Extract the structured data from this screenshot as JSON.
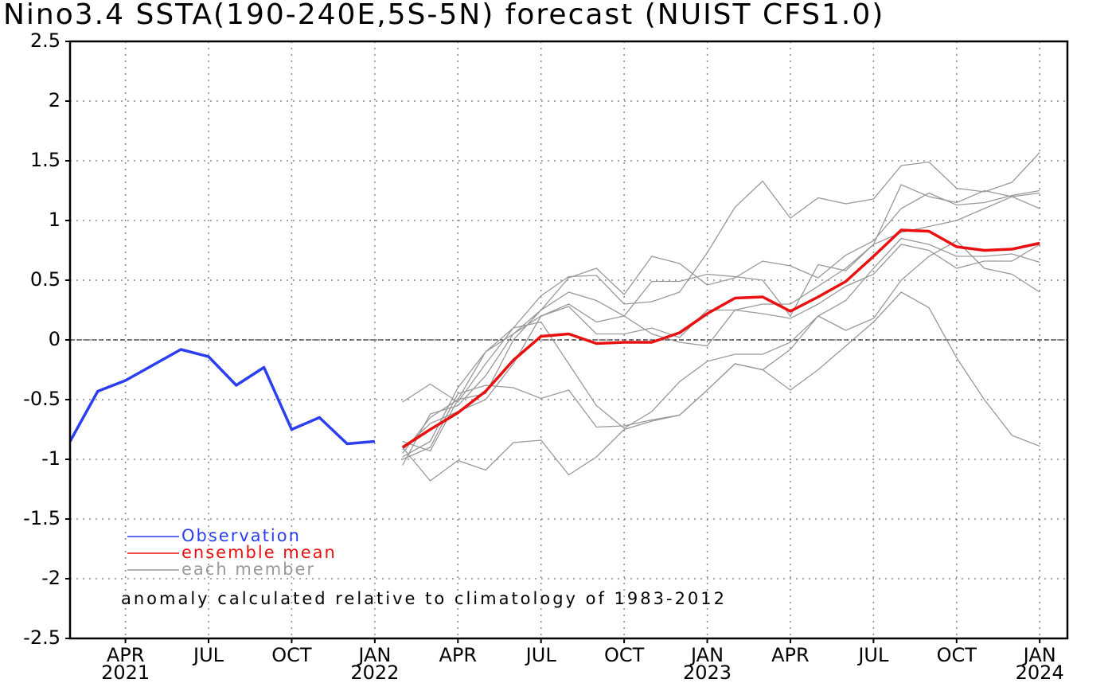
{
  "chart_data": {
    "type": "line",
    "title": "Nino3.4 SSTA(190-240E,5S-5N) forecast (NUIST CFS1.0)",
    "annotation": "anomaly calculated relative to climatology of 1983-2012",
    "xlim": [
      "2021-02",
      "2024-02"
    ],
    "ylim": [
      -2.5,
      2.5
    ],
    "yticks": [
      -2.5,
      -2,
      -1.5,
      -1,
      -0.5,
      0,
      0.5,
      1,
      1.5,
      2,
      2.5
    ],
    "xticks": [
      {
        "value": "2021-04",
        "label": "APR"
      },
      {
        "value": "2021-07",
        "label": "JUL"
      },
      {
        "value": "2021-10",
        "label": "OCT"
      },
      {
        "value": "2022-01",
        "label": "JAN"
      },
      {
        "value": "2022-04",
        "label": "APR"
      },
      {
        "value": "2022-07",
        "label": "JUL"
      },
      {
        "value": "2022-10",
        "label": "OCT"
      },
      {
        "value": "2023-01",
        "label": "JAN"
      },
      {
        "value": "2023-04",
        "label": "APR"
      },
      {
        "value": "2023-07",
        "label": "JUL"
      },
      {
        "value": "2023-10",
        "label": "OCT"
      },
      {
        "value": "2024-01",
        "label": "JAN"
      }
    ],
    "xtick_years": [
      {
        "value": "2021-04",
        "label": "2021"
      },
      {
        "value": "2022-01",
        "label": "2022"
      },
      {
        "value": "2023-01",
        "label": "2023"
      },
      {
        "value": "2024-01",
        "label": "2024"
      }
    ],
    "grid": true,
    "zero_line": true,
    "series": [
      {
        "name": "Observation",
        "color": "#2b3ff0",
        "x": [
          "2021-02",
          "2021-03",
          "2021-04",
          "2021-05",
          "2021-06",
          "2021-07",
          "2021-08",
          "2021-09",
          "2021-10",
          "2021-11",
          "2021-12",
          "2022-01"
        ],
        "values": [
          -0.85,
          -0.43,
          -0.34,
          -0.21,
          -0.08,
          -0.14,
          -0.38,
          -0.23,
          -0.75,
          -0.65,
          -0.87,
          -0.85
        ]
      },
      {
        "name": "ensemble mean",
        "color": "#e81010",
        "x": [
          "2022-02",
          "2022-03",
          "2022-04",
          "2022-05",
          "2022-06",
          "2022-07",
          "2022-08",
          "2022-09",
          "2022-10",
          "2022-11",
          "2022-12",
          "2023-01",
          "2023-02",
          "2023-03",
          "2023-04",
          "2023-05",
          "2023-06",
          "2023-07",
          "2023-08",
          "2023-09",
          "2023-10",
          "2023-11",
          "2023-12",
          "2024-01"
        ],
        "values": [
          -0.9,
          -0.75,
          -0.61,
          -0.43,
          -0.17,
          0.03,
          0.05,
          -0.03,
          -0.02,
          -0.02,
          0.06,
          0.22,
          0.35,
          0.36,
          0.24,
          0.36,
          0.49,
          0.7,
          0.92,
          0.91,
          0.78,
          0.75,
          0.76,
          0.81
        ]
      },
      {
        "name": "each member",
        "color": "#999999",
        "x": [
          "2022-02",
          "2022-03",
          "2022-04",
          "2022-05",
          "2022-06",
          "2022-07",
          "2022-08",
          "2022-09",
          "2022-10",
          "2022-11",
          "2022-12",
          "2023-01",
          "2023-02",
          "2023-03",
          "2023-04",
          "2023-05",
          "2023-06",
          "2023-07",
          "2023-08",
          "2023-09",
          "2023-10",
          "2023-11",
          "2023-12",
          "2024-01"
        ],
        "members": [
          [
            -0.52,
            -0.37,
            -0.52,
            -0.2,
            0.1,
            0.37,
            0.53,
            0.54,
            0.3,
            0.32,
            0.4,
            0.73,
            1.11,
            1.33,
            1.02,
            1.19,
            1.14,
            1.18,
            1.46,
            1.49,
            1.27,
            1.24,
            1.32,
            1.57
          ],
          [
            -0.95,
            -0.65,
            -0.5,
            -0.1,
            0.05,
            0.25,
            0.52,
            0.6,
            0.38,
            0.7,
            0.64,
            0.46,
            0.52,
            0.66,
            0.62,
            0.52,
            0.71,
            0.83,
            1.1,
            1.23,
            1.13,
            1.15,
            1.21,
            1.25
          ],
          [
            -0.85,
            -0.93,
            -0.5,
            -0.45,
            0.0,
            0.25,
            0.4,
            0.33,
            0.2,
            0.49,
            0.49,
            0.55,
            0.53,
            0.5,
            0.2,
            0.63,
            0.58,
            0.8,
            1.3,
            1.2,
            1.15,
            1.25,
            1.2,
            1.1
          ],
          [
            -1.0,
            -0.9,
            -0.45,
            -0.38,
            -0.4,
            -0.49,
            -0.42,
            -0.73,
            -0.72,
            -0.67,
            -0.63,
            -0.42,
            -0.2,
            -0.25,
            -0.42,
            -0.25,
            -0.05,
            0.15,
            0.4,
            0.27,
            -0.15,
            -0.5,
            -0.8,
            -0.89
          ],
          [
            -0.9,
            -1.18,
            -1.01,
            -1.09,
            -0.86,
            -0.84,
            -1.13,
            -0.98,
            -0.75,
            -0.68,
            -0.63,
            -0.42,
            -0.2,
            -0.25,
            -0.08,
            0.2,
            0.08,
            0.18,
            0.5,
            0.7,
            0.83,
            0.6,
            0.55,
            0.4
          ],
          [
            -1.05,
            -0.62,
            -0.55,
            -0.3,
            0.05,
            0.2,
            0.28,
            0.05,
            0.05,
            0.1,
            0.02,
            0.25,
            0.25,
            0.22,
            0.18,
            0.3,
            0.45,
            0.55,
            0.8,
            0.75,
            0.6,
            0.66,
            0.66,
            0.8
          ],
          [
            -0.92,
            -0.7,
            -0.6,
            -0.5,
            -0.2,
            0.2,
            0.3,
            0.15,
            0.2,
            0.05,
            -0.02,
            -0.05,
            0.25,
            0.3,
            0.3,
            0.45,
            0.6,
            0.8,
            0.9,
            0.95,
            1.0,
            1.1,
            1.2,
            1.23
          ],
          [
            -0.98,
            -0.85,
            -0.4,
            -0.1,
            0.1,
            0.15,
            -0.2,
            -0.55,
            -0.74,
            -0.6,
            -0.35,
            -0.18,
            -0.12,
            -0.12,
            -0.02,
            0.2,
            0.33,
            0.6,
            0.85,
            0.8,
            0.7,
            0.7,
            0.72,
            0.65
          ]
        ]
      }
    ]
  }
}
